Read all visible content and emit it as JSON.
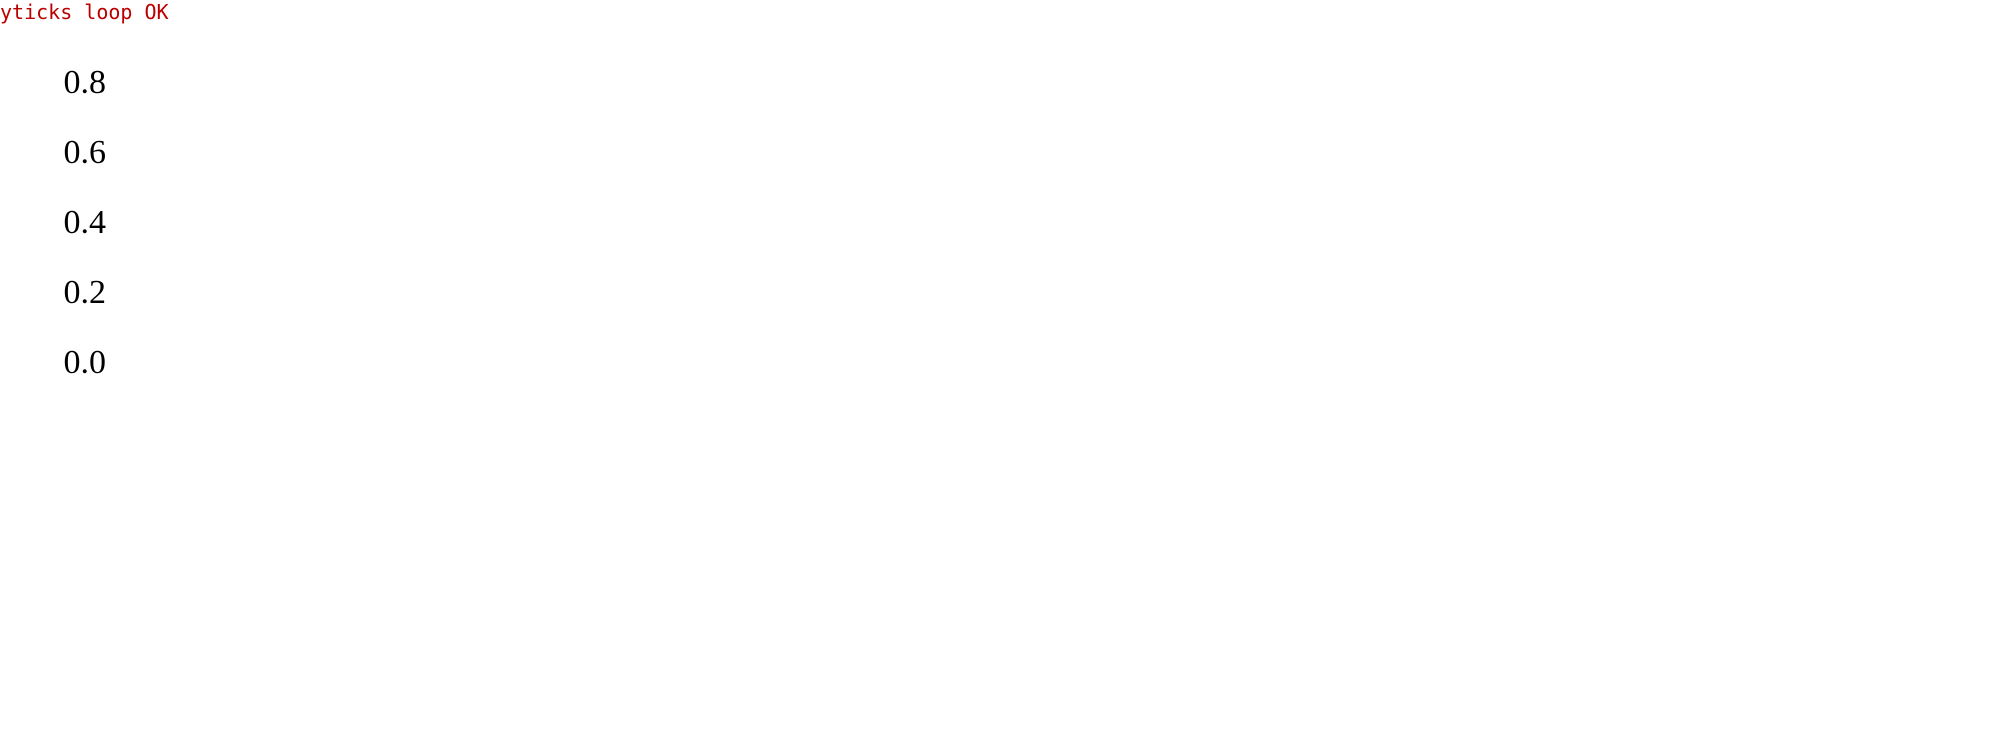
{
  "chart_data": {
    "yticks": [
      0.0,
      0.2,
      0.4,
      0.6,
      0.8
    ],
    "ytick_labels": [
      "0.0",
      "0.2",
      "0.4",
      "0.6",
      "0.8"
    ]
  },
  "style": {
    "x_color": "#cc1f1f"
  }
}
